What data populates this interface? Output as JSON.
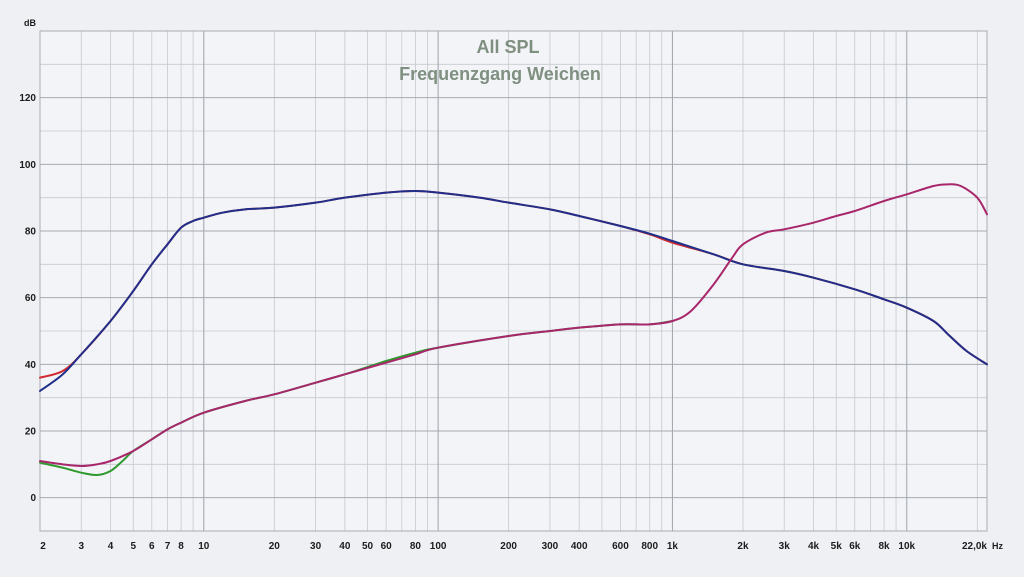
{
  "chart_data": {
    "type": "line",
    "title": "All SPL",
    "subtitle": "Frequenzgang Weichen",
    "ylabel": "dB",
    "xlabel": "",
    "x_unit": "Hz",
    "x_scale": "log",
    "xlim": [
      2,
      22000
    ],
    "ylim": [
      -10,
      140
    ],
    "grid": true,
    "y_ticks": [
      {
        "value": 0,
        "label": "0"
      },
      {
        "value": 20,
        "label": "20"
      },
      {
        "value": 40,
        "label": "40"
      },
      {
        "value": 60,
        "label": "60"
      },
      {
        "value": 80,
        "label": "80"
      },
      {
        "value": 100,
        "label": "100"
      },
      {
        "value": 120,
        "label": "120"
      }
    ],
    "x_ticks": [
      {
        "value": 2,
        "label": "2"
      },
      {
        "value": 3,
        "label": "3"
      },
      {
        "value": 4,
        "label": "4"
      },
      {
        "value": 5,
        "label": "5"
      },
      {
        "value": 6,
        "label": "6"
      },
      {
        "value": 7,
        "label": "7"
      },
      {
        "value": 8,
        "label": "8"
      },
      {
        "value": 10,
        "label": "10"
      },
      {
        "value": 20,
        "label": "20"
      },
      {
        "value": 30,
        "label": "30"
      },
      {
        "value": 40,
        "label": "40"
      },
      {
        "value": 50,
        "label": "50"
      },
      {
        "value": 60,
        "label": "60"
      },
      {
        "value": 80,
        "label": "80"
      },
      {
        "value": 100,
        "label": "100"
      },
      {
        "value": 200,
        "label": "200"
      },
      {
        "value": 300,
        "label": "300"
      },
      {
        "value": 400,
        "label": "400"
      },
      {
        "value": 600,
        "label": "600"
      },
      {
        "value": 800,
        "label": "800"
      },
      {
        "value": 1000,
        "label": "1k"
      },
      {
        "value": 2000,
        "label": "2k"
      },
      {
        "value": 3000,
        "label": "3k"
      },
      {
        "value": 4000,
        "label": "4k"
      },
      {
        "value": 5000,
        "label": "5k"
      },
      {
        "value": 6000,
        "label": "6k"
      },
      {
        "value": 8000,
        "label": "8k"
      },
      {
        "value": 10000,
        "label": "10k"
      },
      {
        "value": 22000,
        "label": "22,0k"
      }
    ],
    "series": [
      {
        "color": "#d02a30",
        "x": [
          2,
          2.5,
          3,
          4,
          5,
          6,
          7,
          8,
          9,
          10,
          12,
          15,
          20,
          30,
          40,
          60,
          80,
          100,
          150,
          200,
          300,
          400,
          600,
          800,
          1000,
          1500,
          2000,
          3000,
          4000,
          6000,
          8000,
          10000,
          13000,
          15000,
          18000,
          22000
        ],
        "y": [
          36,
          38,
          43,
          53,
          62,
          70,
          76,
          81,
          83,
          84,
          85.5,
          86.5,
          87,
          88.5,
          90,
          91.5,
          92,
          91.5,
          90,
          88.5,
          86.5,
          84.5,
          81.5,
          79,
          76.5,
          73,
          70,
          68,
          66,
          62.5,
          59.5,
          57,
          53,
          49,
          44,
          40
        ]
      },
      {
        "color": "#1f2f8a",
        "x": [
          2,
          2.5,
          3,
          4,
          5,
          6,
          7,
          8,
          9,
          10,
          12,
          15,
          20,
          30,
          40,
          60,
          80,
          100,
          150,
          200,
          300,
          400,
          600,
          800,
          1000,
          1500,
          2000,
          3000,
          4000,
          6000,
          8000,
          10000,
          13000,
          15000,
          18000,
          22000
        ],
        "y": [
          32,
          37,
          43,
          53,
          62,
          70,
          76,
          81,
          83,
          84,
          85.5,
          86.5,
          87,
          88.5,
          90,
          91.5,
          92,
          91.5,
          90,
          88.5,
          86.5,
          84.5,
          81.5,
          79.2,
          77,
          73,
          70,
          68,
          66,
          62.5,
          59.5,
          57,
          53,
          49,
          44,
          40
        ]
      },
      {
        "color": "#2e9a2e",
        "x": [
          2,
          2.5,
          3,
          3.5,
          4,
          4.5,
          5,
          6,
          7,
          8,
          10,
          15,
          20,
          30,
          40,
          60,
          80,
          100,
          200,
          300,
          400,
          600,
          800,
          1000
        ],
        "y": [
          10.5,
          9,
          7.5,
          6.8,
          8,
          11,
          14,
          17.5,
          20.5,
          22.5,
          25.5,
          29,
          31,
          34.5,
          37,
          41,
          43.5,
          45,
          48.5,
          50,
          51,
          52,
          52,
          53
        ]
      },
      {
        "color": "#a8266b",
        "x": [
          2,
          2.5,
          3,
          3.5,
          4,
          5,
          6,
          7,
          8,
          10,
          15,
          20,
          30,
          40,
          60,
          80,
          100,
          200,
          300,
          400,
          600,
          800,
          1000,
          1200,
          1500,
          1800,
          2000,
          2500,
          3000,
          4000,
          5000,
          6000,
          8000,
          10000,
          13000,
          15000,
          17000,
          20000,
          22000
        ],
        "y": [
          11,
          10,
          9.5,
          10,
          11,
          14,
          17.5,
          20.5,
          22.5,
          25.5,
          29,
          31,
          34.5,
          37,
          40.5,
          43,
          45,
          48.5,
          50,
          51,
          52,
          52,
          53,
          56,
          64,
          72,
          76,
          79.5,
          80.5,
          82.5,
          84.5,
          86,
          89,
          91,
          93.5,
          94,
          93.5,
          90,
          85
        ]
      }
    ]
  }
}
